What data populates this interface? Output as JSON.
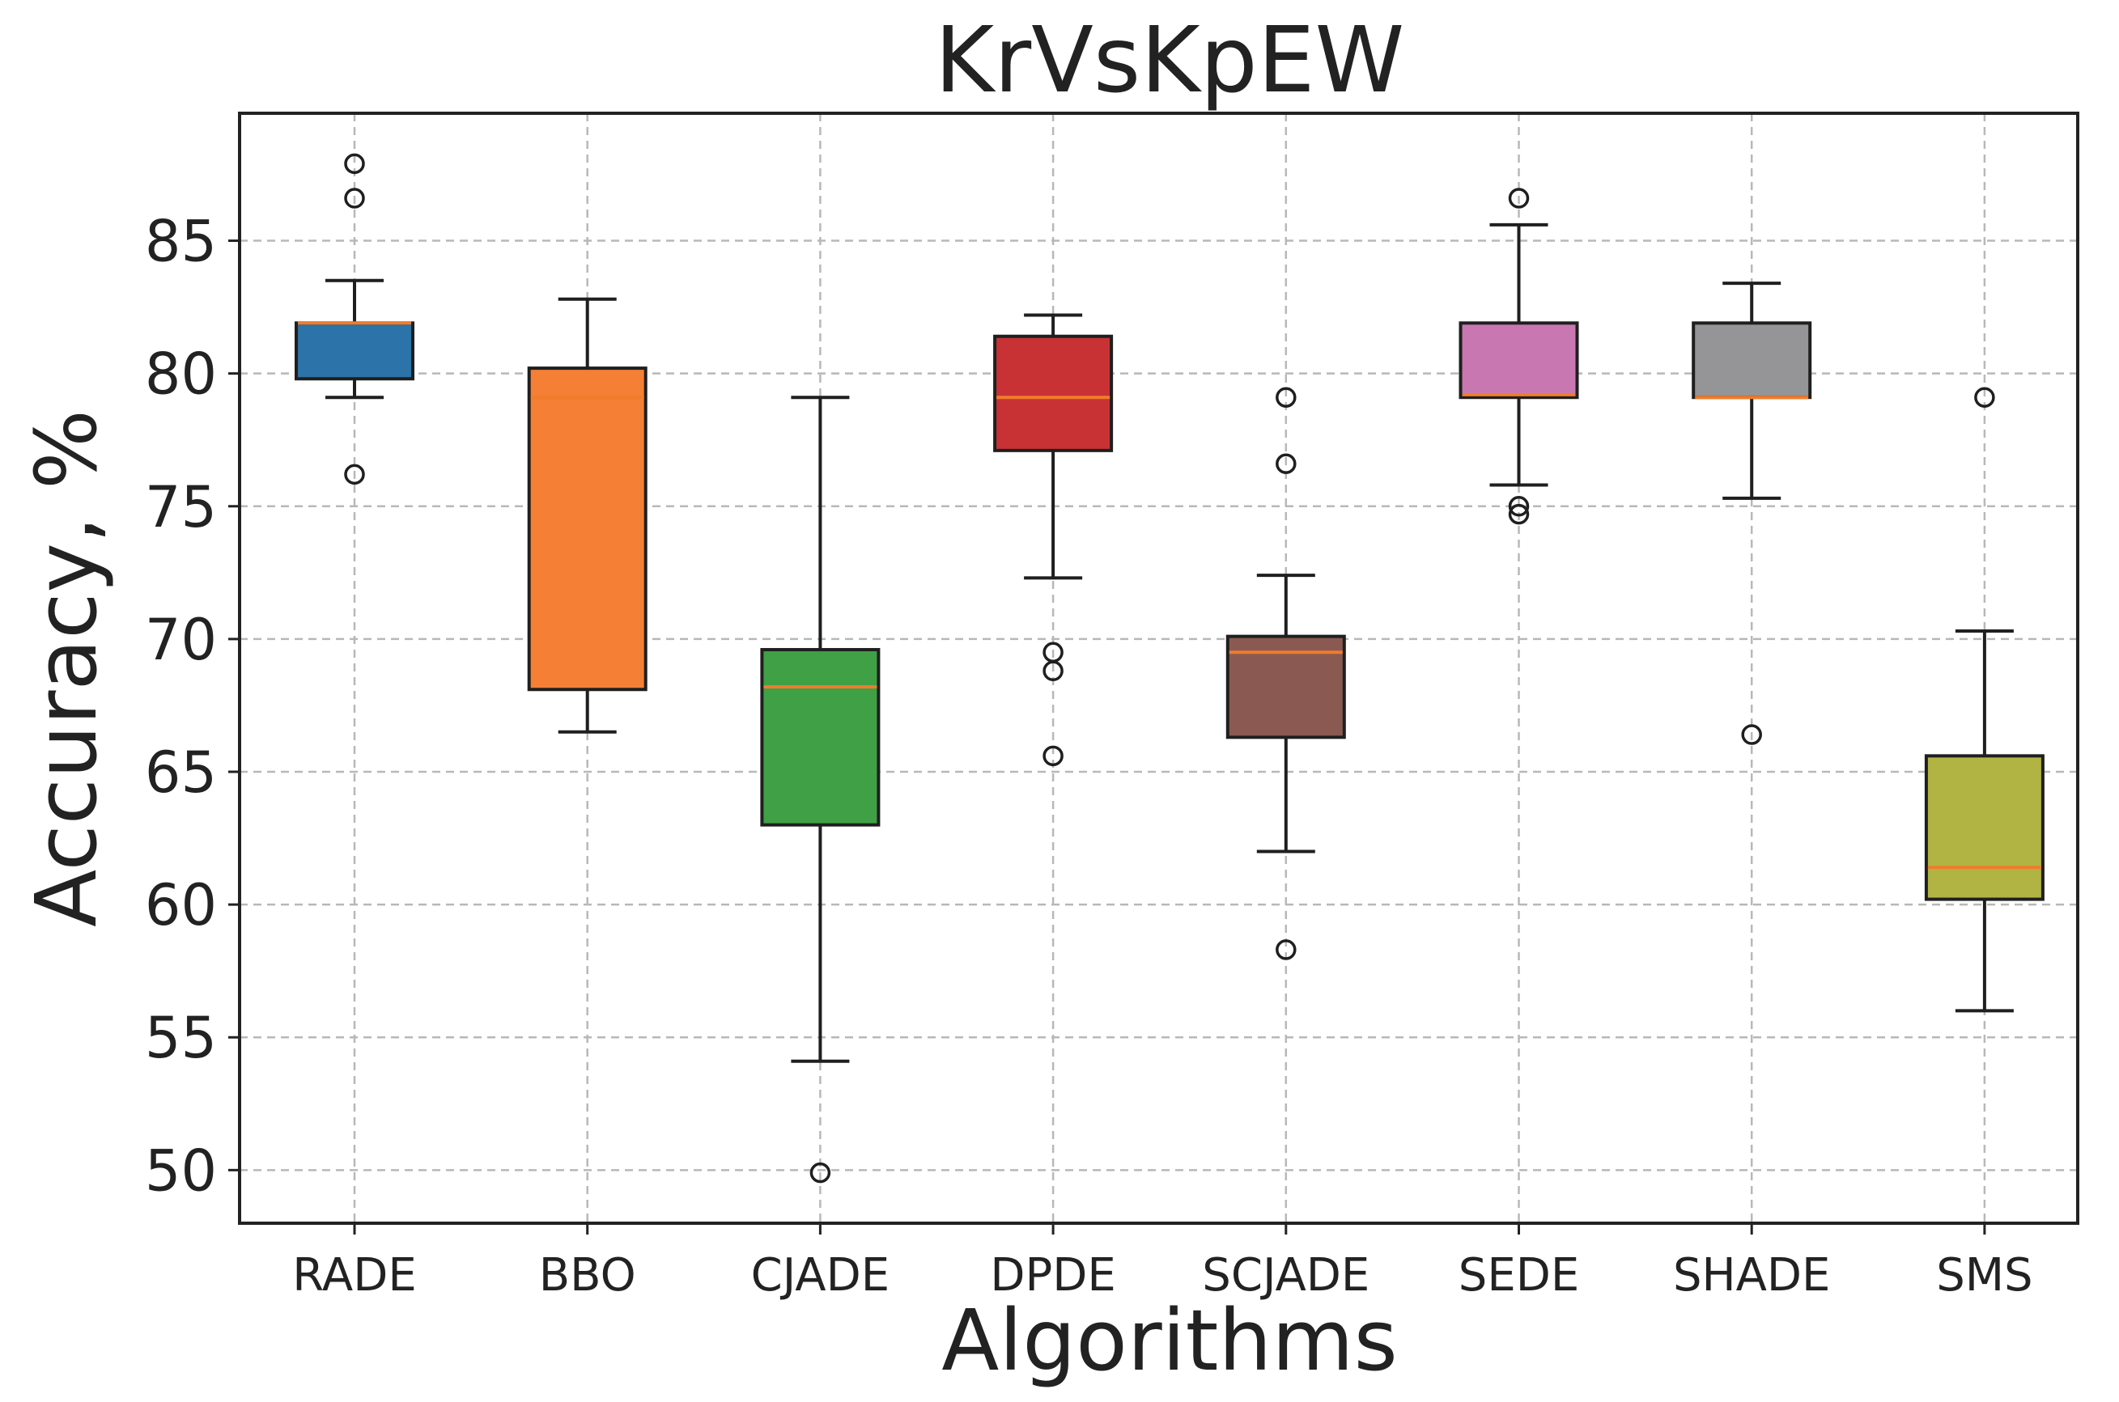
{
  "chart_data": {
    "type": "boxplot",
    "title": "KrVsKpEW",
    "xlabel": "Algorithms",
    "ylabel": "Accuracy, %",
    "ylim": [
      48,
      89.8
    ],
    "yticks": [
      50,
      55,
      60,
      65,
      70,
      75,
      80,
      85
    ],
    "grid": true,
    "median_color": "#f07c2c",
    "series": [
      {
        "name": "RADE",
        "color": "#2b73a8",
        "whisker_low": 79.1,
        "q1": 79.8,
        "median": 81.9,
        "q3": 81.9,
        "whisker_high": 83.5,
        "outliers": [
          76.2,
          86.6,
          87.9
        ]
      },
      {
        "name": "BBO",
        "color": "#f47f35",
        "whisker_low": 66.5,
        "q1": 68.1,
        "median": 79.1,
        "q3": 80.2,
        "whisker_high": 82.8,
        "outliers": []
      },
      {
        "name": "CJADE",
        "color": "#40a046",
        "whisker_low": 54.1,
        "q1": 63.0,
        "median": 68.2,
        "q3": 69.6,
        "whisker_high": 79.1,
        "outliers": [
          49.9
        ]
      },
      {
        "name": "DPDE",
        "color": "#c83234",
        "whisker_low": 72.3,
        "q1": 77.1,
        "median": 79.1,
        "q3": 81.4,
        "whisker_high": 82.2,
        "outliers": [
          65.6,
          68.8,
          69.5
        ]
      },
      {
        "name": "SCJADE",
        "color": "#8a5a52",
        "whisker_low": 62.0,
        "q1": 66.3,
        "median": 69.5,
        "q3": 70.1,
        "whisker_high": 72.4,
        "outliers": [
          58.3,
          76.6,
          79.1
        ]
      },
      {
        "name": "SEDE",
        "color": "#c977b1",
        "whisker_low": 75.8,
        "q1": 79.1,
        "median": 79.2,
        "q3": 81.9,
        "whisker_high": 85.6,
        "outliers": [
          74.7,
          75.0,
          86.6
        ]
      },
      {
        "name": "SHADE",
        "color": "#959597",
        "whisker_low": 75.3,
        "q1": 79.1,
        "median": 79.1,
        "q3": 81.9,
        "whisker_high": 83.4,
        "outliers": [
          66.4
        ]
      },
      {
        "name": "SMS",
        "color": "#b1b443",
        "whisker_low": 56.0,
        "q1": 60.2,
        "median": 61.4,
        "q3": 65.6,
        "whisker_high": 70.3,
        "outliers": [
          79.1
        ]
      }
    ]
  }
}
